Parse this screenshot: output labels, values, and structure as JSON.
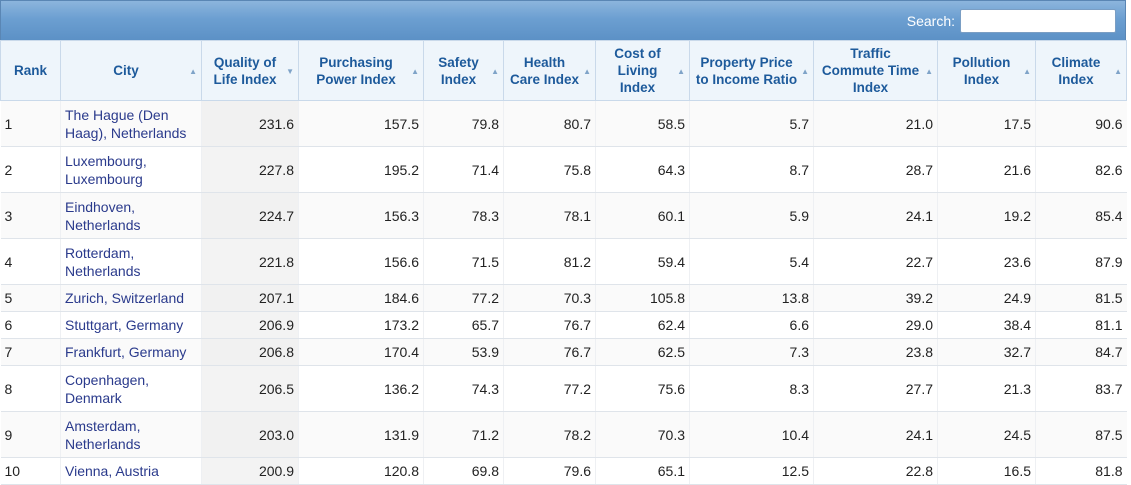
{
  "search": {
    "label": "Search:",
    "value": ""
  },
  "columns": [
    {
      "label": "Rank",
      "sort": ""
    },
    {
      "label": "City",
      "sort": "▲"
    },
    {
      "label": "Quality of Life Index",
      "sort": "▼"
    },
    {
      "label": "Purchasing Power Index",
      "sort": "▲"
    },
    {
      "label": "Safety Index",
      "sort": "▲"
    },
    {
      "label": "Health Care Index",
      "sort": "▲"
    },
    {
      "label": "Cost of Living Index",
      "sort": "▲"
    },
    {
      "label": "Property Price to Income Ratio",
      "sort": "▲"
    },
    {
      "label": "Traffic Commute Time Index",
      "sort": "▲"
    },
    {
      "label": "Pollution Index",
      "sort": "▲"
    },
    {
      "label": "Climate Index",
      "sort": "▲"
    }
  ],
  "rows": [
    {
      "rank": "1",
      "city": "The Hague (Den Haag), Netherlands",
      "qol": "231.6",
      "pp": "157.5",
      "safety": "79.8",
      "health": "80.7",
      "col": "58.5",
      "ppi": "5.7",
      "traffic": "21.0",
      "pollution": "17.5",
      "climate": "90.6"
    },
    {
      "rank": "2",
      "city": "Luxembourg, Luxembourg",
      "qol": "227.8",
      "pp": "195.2",
      "safety": "71.4",
      "health": "75.8",
      "col": "64.3",
      "ppi": "8.7",
      "traffic": "28.7",
      "pollution": "21.6",
      "climate": "82.6"
    },
    {
      "rank": "3",
      "city": "Eindhoven, Netherlands",
      "qol": "224.7",
      "pp": "156.3",
      "safety": "78.3",
      "health": "78.1",
      "col": "60.1",
      "ppi": "5.9",
      "traffic": "24.1",
      "pollution": "19.2",
      "climate": "85.4"
    },
    {
      "rank": "4",
      "city": "Rotterdam, Netherlands",
      "qol": "221.8",
      "pp": "156.6",
      "safety": "71.5",
      "health": "81.2",
      "col": "59.4",
      "ppi": "5.4",
      "traffic": "22.7",
      "pollution": "23.6",
      "climate": "87.9"
    },
    {
      "rank": "5",
      "city": "Zurich, Switzerland",
      "qol": "207.1",
      "pp": "184.6",
      "safety": "77.2",
      "health": "70.3",
      "col": "105.8",
      "ppi": "13.8",
      "traffic": "39.2",
      "pollution": "24.9",
      "climate": "81.5"
    },
    {
      "rank": "6",
      "city": "Stuttgart, Germany",
      "qol": "206.9",
      "pp": "173.2",
      "safety": "65.7",
      "health": "76.7",
      "col": "62.4",
      "ppi": "6.6",
      "traffic": "29.0",
      "pollution": "38.4",
      "climate": "81.1"
    },
    {
      "rank": "7",
      "city": "Frankfurt, Germany",
      "qol": "206.8",
      "pp": "170.4",
      "safety": "53.9",
      "health": "76.7",
      "col": "62.5",
      "ppi": "7.3",
      "traffic": "23.8",
      "pollution": "32.7",
      "climate": "84.7"
    },
    {
      "rank": "8",
      "city": "Copenhagen, Denmark",
      "qol": "206.5",
      "pp": "136.2",
      "safety": "74.3",
      "health": "77.2",
      "col": "75.6",
      "ppi": "8.3",
      "traffic": "27.7",
      "pollution": "21.3",
      "climate": "83.7"
    },
    {
      "rank": "9",
      "city": "Amsterdam, Netherlands",
      "qol": "203.0",
      "pp": "131.9",
      "safety": "71.2",
      "health": "78.2",
      "col": "70.3",
      "ppi": "10.4",
      "traffic": "24.1",
      "pollution": "24.5",
      "climate": "87.5"
    },
    {
      "rank": "10",
      "city": "Vienna, Austria",
      "qol": "200.9",
      "pp": "120.8",
      "safety": "69.8",
      "health": "79.6",
      "col": "65.1",
      "ppi": "12.5",
      "traffic": "22.8",
      "pollution": "16.5",
      "climate": "81.8"
    }
  ]
}
